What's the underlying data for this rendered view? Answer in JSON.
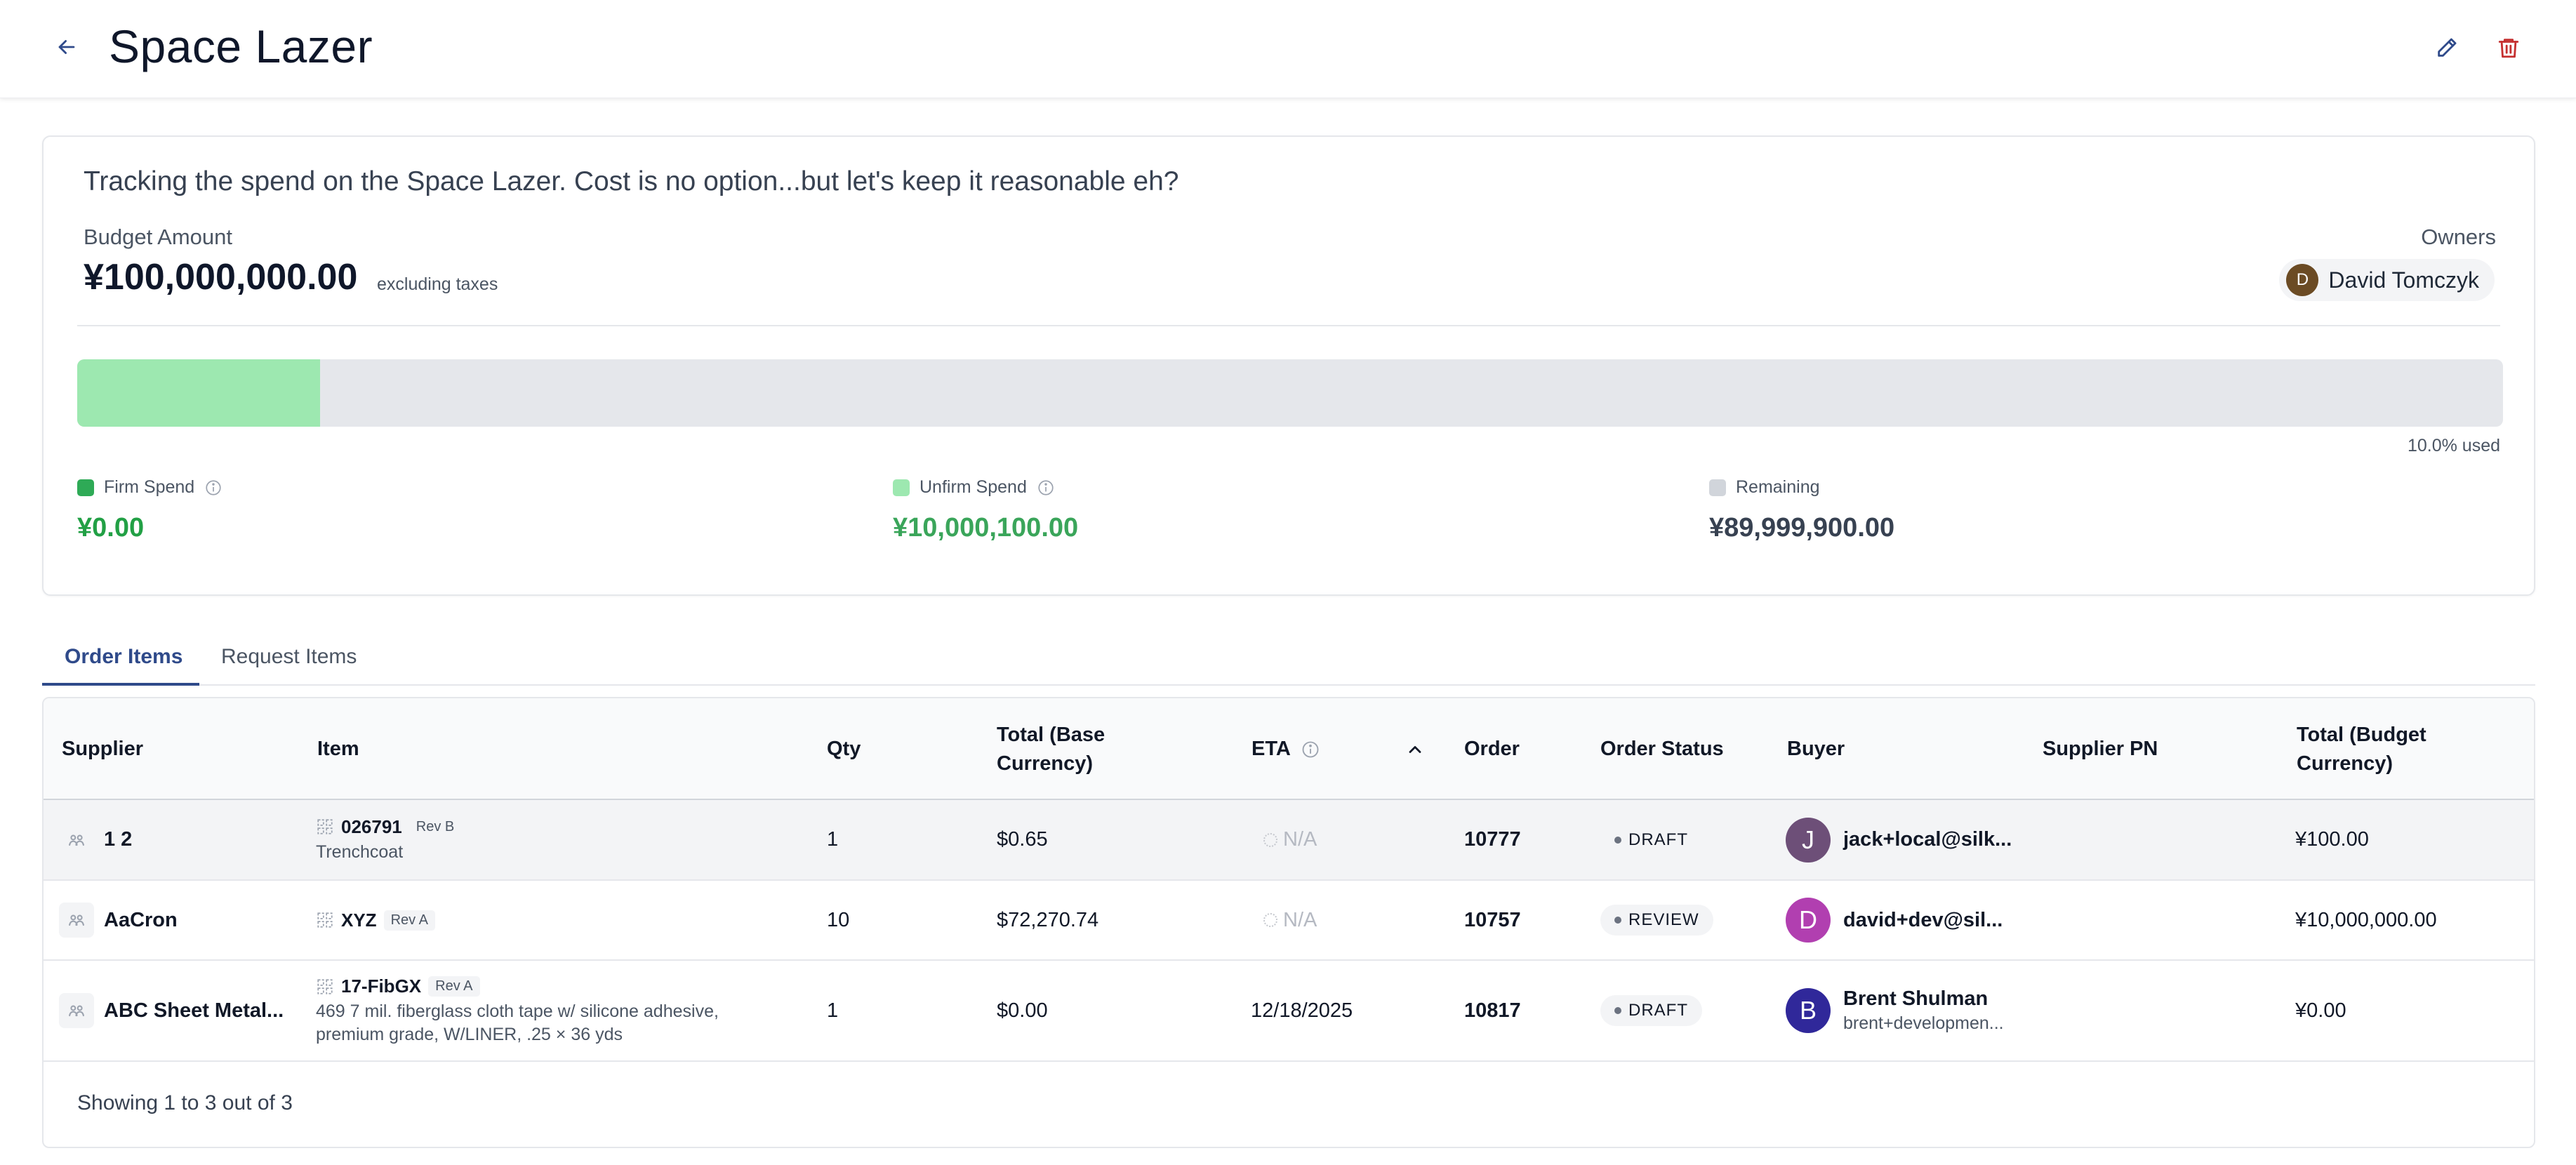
{
  "header": {
    "title": "Space Lazer"
  },
  "budget": {
    "description": "Tracking the spend on the Space Lazer. Cost is no option...but let's keep it reasonable eh?",
    "amount_label": "Budget Amount",
    "amount": "¥100,000,000.00",
    "amount_note": "excluding taxes",
    "owners_label": "Owners",
    "owner": {
      "initial": "D",
      "name": "David Tomczyk"
    },
    "usage": {
      "firm_fraction": 0.0,
      "unfirm_fraction": 0.1,
      "used_text": "10.0% used"
    },
    "metrics": {
      "firm": {
        "label": "Firm Spend",
        "value": "¥0.00",
        "color": "#22a045"
      },
      "unfirm": {
        "label": "Unfirm Spend",
        "value": "¥10,000,100.00",
        "color": "#3aa55a"
      },
      "remaining": {
        "label": "Remaining",
        "value": "¥89,999,900.00",
        "color": "#374151"
      }
    }
  },
  "tabs": [
    "Order Items",
    "Request Items"
  ],
  "table": {
    "headers": {
      "supplier": "Supplier",
      "item": "Item",
      "qty": "Qty",
      "total_base": "Total (Base Currency)",
      "eta": "ETA",
      "order": "Order",
      "order_status": "Order Status",
      "buyer": "Buyer",
      "supplier_pn": "Supplier PN",
      "total_budget": "Total (Budget Currency)"
    },
    "rows": [
      {
        "supplier": "1 2",
        "item_code": "026791",
        "item_rev": "Rev B",
        "item_desc": "Trenchcoat",
        "qty": "1",
        "total_base": "$0.65",
        "eta": "N/A",
        "order": "10777",
        "status": "DRAFT",
        "buyer_initial": "J",
        "buyer_name": "jack+local@silk...",
        "buyer_sub": "",
        "supplier_pn": "",
        "total_budget": "¥100.00"
      },
      {
        "supplier": "AaCron",
        "item_code": "XYZ",
        "item_rev": "Rev A",
        "item_desc": "",
        "qty": "10",
        "total_base": "$72,270.74",
        "eta": "N/A",
        "order": "10757",
        "status": "REVIEW",
        "buyer_initial": "D",
        "buyer_name": "david+dev@sil...",
        "buyer_sub": "",
        "supplier_pn": "",
        "total_budget": "¥10,000,000.00"
      },
      {
        "supplier": "ABC Sheet Metal...",
        "item_code": "17-FibGX",
        "item_rev": "Rev A",
        "item_desc_1": "469 7 mil. fiberglass cloth tape w/ silicone adhesive,",
        "item_desc_2": "premium grade, W/LINER, .25 × 36 yds",
        "qty": "1",
        "total_base": "$0.00",
        "eta": "12/18/2025",
        "order": "10817",
        "status": "DRAFT",
        "buyer_initial": "B",
        "buyer_name": "Brent Shulman",
        "buyer_sub": "brent+developmen...",
        "supplier_pn": "",
        "total_budget": "¥0.00"
      }
    ],
    "footer": "Showing 1 to 3 out of 3"
  },
  "colors": {
    "accent": "#2f4a8a",
    "firm_swatch": "#2eaa56",
    "unfirm_swatch": "#9de8b0",
    "remaining_swatch": "#d1d5db",
    "delete_icon": "#c53030",
    "avatar_j": "#6d4f78",
    "avatar_d": "#b13fb0",
    "avatar_b": "#30289a"
  }
}
